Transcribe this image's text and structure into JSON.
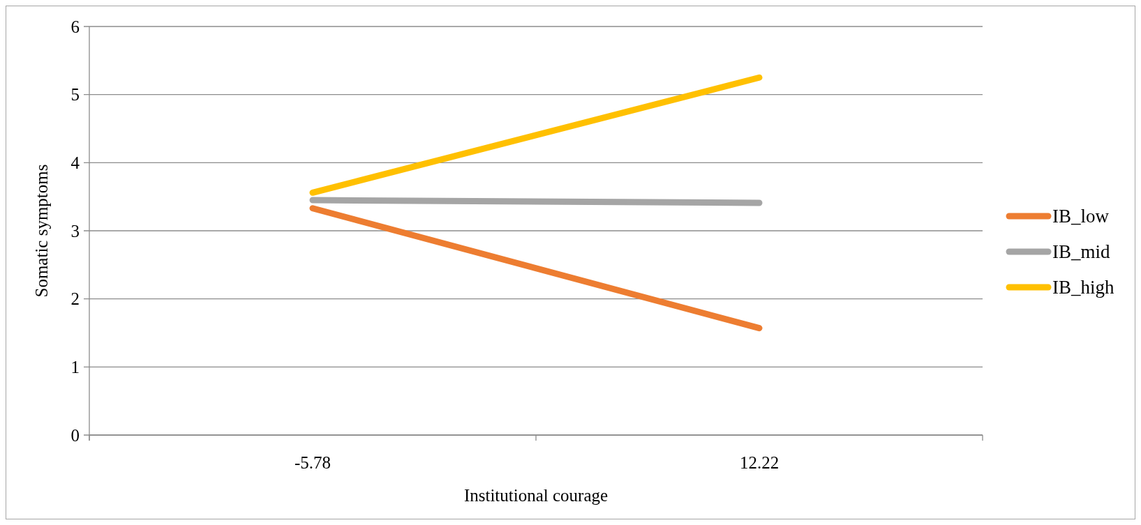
{
  "chart_data": {
    "type": "line",
    "xlabel": "Institutional courage",
    "ylabel": "Somatic symptoms",
    "categories": [
      "-5.78",
      "12.22"
    ],
    "series": [
      {
        "name": "IB_low",
        "color": "#ed7d31",
        "values": [
          3.33,
          1.57
        ]
      },
      {
        "name": "IB_mid",
        "color": "#a5a5a5",
        "values": [
          3.45,
          3.41
        ]
      },
      {
        "name": "IB_high",
        "color": "#ffc000",
        "values": [
          3.56,
          5.25
        ]
      }
    ],
    "ylim": [
      0,
      6
    ],
    "yticks": [
      0,
      1,
      2,
      3,
      4,
      5,
      6
    ],
    "grid": "y",
    "legend": "right",
    "marker": "none",
    "line_style": "solid"
  }
}
